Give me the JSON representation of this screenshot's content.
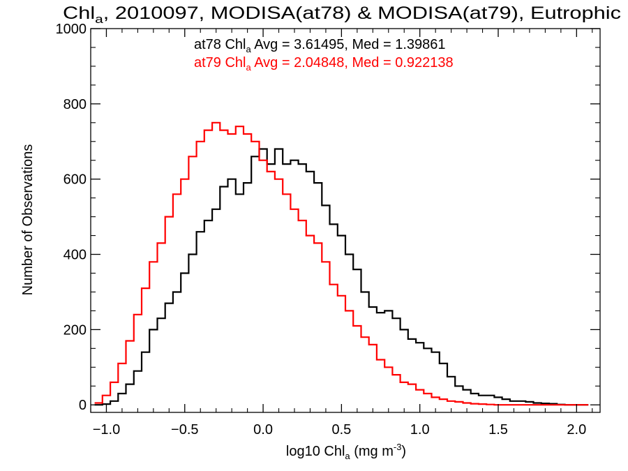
{
  "chart_data": {
    "type": "line",
    "title": {
      "prefix": "Chl",
      "sub": "a",
      "rest": ", 2010097, MODISA(at78) & MODISA(at79), Eutrophic"
    },
    "xlabel": {
      "prefix": "log10 Chl",
      "sub": "a",
      "mid": " (mg m",
      "sup": "-3",
      "suffix": ")"
    },
    "ylabel": "Number of Observations",
    "xlim": [
      -1.1,
      2.15
    ],
    "ylim": [
      -20,
      1000
    ],
    "x_ticks": [
      -1.0,
      -0.5,
      0.0,
      0.5,
      1.0,
      1.5,
      2.0
    ],
    "x_tick_labels": [
      "−1.0",
      "−0.5",
      "0.0",
      "0.5",
      "1.0",
      "1.5",
      "2.0"
    ],
    "y_ticks": [
      0,
      200,
      400,
      600,
      800,
      1000
    ],
    "y_tick_labels": [
      "0",
      "200",
      "400",
      "600",
      "800",
      "1000"
    ],
    "grid": false,
    "annotations": [
      {
        "prefix": "at78 Chl",
        "sub": "a",
        "rest": " Avg = 3.61495, Med = 1.39861",
        "color": "#000000"
      },
      {
        "prefix": "at79 Chl",
        "sub": "a",
        "rest": " Avg = 2.04848, Med = 0.922138",
        "color": "#ff0000"
      }
    ],
    "series": [
      {
        "color": "#000000",
        "step": true,
        "x": [
          -1.05,
          -1.0,
          -0.95,
          -0.9,
          -0.85,
          -0.8,
          -0.75,
          -0.7,
          -0.65,
          -0.6,
          -0.55,
          -0.5,
          -0.45,
          -0.4,
          -0.35,
          -0.3,
          -0.25,
          -0.2,
          -0.15,
          -0.1,
          -0.05,
          0.0,
          0.05,
          0.1,
          0.15,
          0.2,
          0.25,
          0.3,
          0.35,
          0.4,
          0.45,
          0.5,
          0.55,
          0.6,
          0.65,
          0.7,
          0.75,
          0.8,
          0.85,
          0.9,
          0.95,
          1.0,
          1.05,
          1.1,
          1.15,
          1.2,
          1.25,
          1.3,
          1.35,
          1.4,
          1.45,
          1.5,
          1.55,
          1.6,
          1.65,
          1.7,
          1.75,
          1.8,
          1.85,
          1.9,
          1.95,
          2.0,
          2.05
        ],
        "values": [
          0,
          2,
          10,
          30,
          55,
          90,
          140,
          200,
          230,
          270,
          300,
          350,
          400,
          460,
          490,
          520,
          580,
          600,
          560,
          590,
          660,
          680,
          640,
          680,
          640,
          650,
          640,
          620,
          590,
          530,
          480,
          450,
          400,
          360,
          300,
          260,
          245,
          250,
          230,
          200,
          175,
          165,
          150,
          140,
          110,
          75,
          50,
          40,
          30,
          25,
          25,
          20,
          15,
          10,
          10,
          8,
          5,
          4,
          3,
          1,
          0,
          0,
          0
        ]
      },
      {
        "color": "#ff0000",
        "step": true,
        "x": [
          -1.05,
          -1.0,
          -0.95,
          -0.9,
          -0.85,
          -0.8,
          -0.75,
          -0.7,
          -0.65,
          -0.6,
          -0.55,
          -0.5,
          -0.45,
          -0.4,
          -0.35,
          -0.3,
          -0.25,
          -0.2,
          -0.15,
          -0.1,
          -0.05,
          0.0,
          0.05,
          0.1,
          0.15,
          0.2,
          0.25,
          0.3,
          0.35,
          0.4,
          0.45,
          0.5,
          0.55,
          0.6,
          0.65,
          0.7,
          0.75,
          0.8,
          0.85,
          0.9,
          0.95,
          1.0,
          1.05,
          1.1,
          1.15,
          1.2,
          1.25,
          1.3,
          1.35,
          1.4,
          1.45,
          1.5,
          1.55,
          1.6,
          1.65,
          1.7,
          1.75,
          1.8,
          1.85,
          1.9,
          1.95,
          2.0,
          2.05
        ],
        "values": [
          5,
          25,
          60,
          110,
          170,
          240,
          310,
          380,
          430,
          500,
          560,
          600,
          660,
          700,
          730,
          750,
          730,
          720,
          740,
          720,
          700,
          650,
          620,
          600,
          560,
          520,
          490,
          450,
          430,
          380,
          320,
          290,
          250,
          210,
          180,
          160,
          120,
          100,
          80,
          60,
          55,
          40,
          30,
          20,
          15,
          10,
          8,
          5,
          3,
          2,
          1,
          0,
          0,
          0,
          0,
          0,
          0,
          0,
          0,
          0,
          0,
          0,
          0
        ]
      }
    ]
  }
}
